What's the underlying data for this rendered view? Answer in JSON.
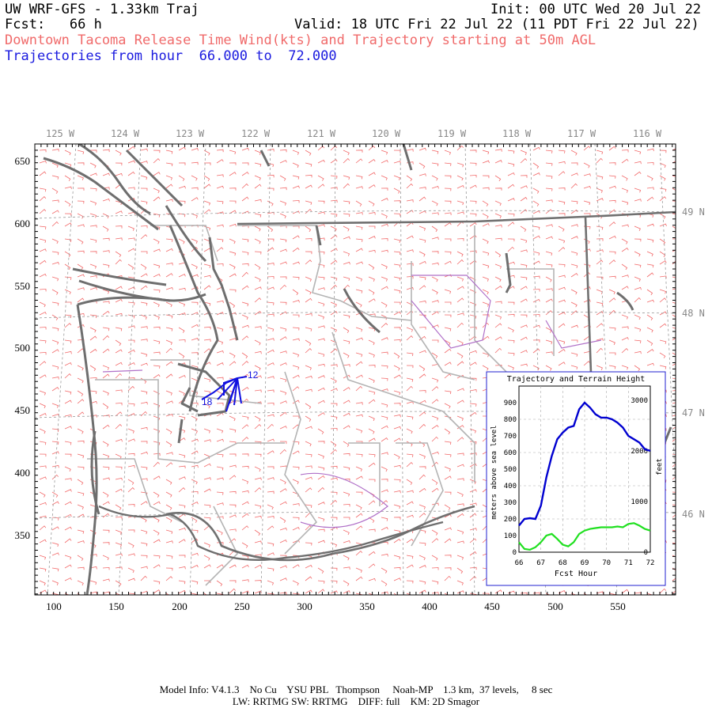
{
  "header": {
    "model": "UW WRF-GFS - 1.33km Traj",
    "init": "Init: 00 UTC Wed 20 Jul 22",
    "fcst": "Fcst:   66 h",
    "valid": "Valid: 18 UTC Fri 22 Jul 22 (11 PDT Fri 22 Jul 22)",
    "desc": "Downtown Tacoma Release Time Wind(kts) and Trajectory starting at 50m AGL",
    "traj_range": "Trajectories from hour  66.000 to  72.000"
  },
  "map": {
    "lon_labels": [
      "125 W",
      "124 W",
      "123 W",
      "122 W",
      "121 W",
      "120 W",
      "119 W",
      "118 W",
      "117 W",
      "116 W"
    ],
    "lat_labels": [
      "49 N",
      "48 N",
      "47 N",
      "46 N"
    ],
    "x_ticks": [
      "100",
      "150",
      "200",
      "250",
      "300",
      "350",
      "400",
      "450",
      "500",
      "550"
    ],
    "y_ticks": [
      "650",
      "600",
      "550",
      "500",
      "450",
      "400",
      "350"
    ],
    "traj_labels": [
      "12",
      "18"
    ],
    "colors": {
      "wind": "#f26a6a",
      "coast": "#6e6e6e",
      "border": "#b4b4b4",
      "state": "#6e6e6e",
      "traj": "#1010e0",
      "terrain": "#b070c8"
    }
  },
  "inset": {
    "title": "Trajectory and Terrain Height",
    "ylabel_left": "meters above sea level",
    "ylabel_right": "feet",
    "xlabel": "Fcst Hour",
    "left_ticks": [
      "900",
      "800",
      "700",
      "600",
      "500",
      "400",
      "300",
      "200",
      "100",
      "0"
    ],
    "right_ticks": [
      "3000",
      "2000",
      "1000",
      "0"
    ],
    "x_ticks": [
      "66",
      "67",
      "68",
      "69",
      "70",
      "71",
      "72"
    ],
    "chart_data": {
      "type": "line",
      "xlabel": "Fcst Hour",
      "ylabel": "meters above sea level",
      "xlim": [
        66,
        72
      ],
      "ylim": [
        0,
        1000
      ],
      "series": [
        {
          "name": "trajectory",
          "color": "#0000d0",
          "x": [
            66,
            66.25,
            66.5,
            66.75,
            67,
            67.25,
            67.5,
            67.75,
            68,
            68.25,
            68.5,
            68.75,
            69,
            69.25,
            69.5,
            69.75,
            70,
            70.25,
            70.5,
            70.75,
            71,
            71.25,
            71.5,
            71.75,
            72
          ],
          "y": [
            160,
            200,
            205,
            200,
            280,
            450,
            580,
            680,
            720,
            750,
            760,
            860,
            900,
            870,
            830,
            810,
            810,
            800,
            780,
            750,
            700,
            680,
            660,
            620,
            610
          ]
        },
        {
          "name": "terrain",
          "color": "#20e020",
          "x": [
            66,
            66.25,
            66.5,
            66.75,
            67,
            67.25,
            67.5,
            67.75,
            68,
            68.25,
            68.5,
            68.75,
            69,
            69.25,
            69.5,
            69.75,
            70,
            70.25,
            70.5,
            70.75,
            71,
            71.25,
            71.5,
            71.75,
            72
          ],
          "y": [
            60,
            20,
            15,
            30,
            60,
            100,
            110,
            80,
            45,
            35,
            60,
            110,
            130,
            140,
            145,
            150,
            150,
            150,
            155,
            150,
            170,
            175,
            160,
            140,
            130
          ]
        }
      ]
    }
  },
  "footer": {
    "line1": "Model Info: V4.1.3    No Cu    YSU PBL   Thompson     Noah-MP    1.3 km,  37 levels,     8 sec",
    "line2": "LW: RRTMG SW: RRTMG    DIFF: full    KM: 2D Smagor"
  }
}
